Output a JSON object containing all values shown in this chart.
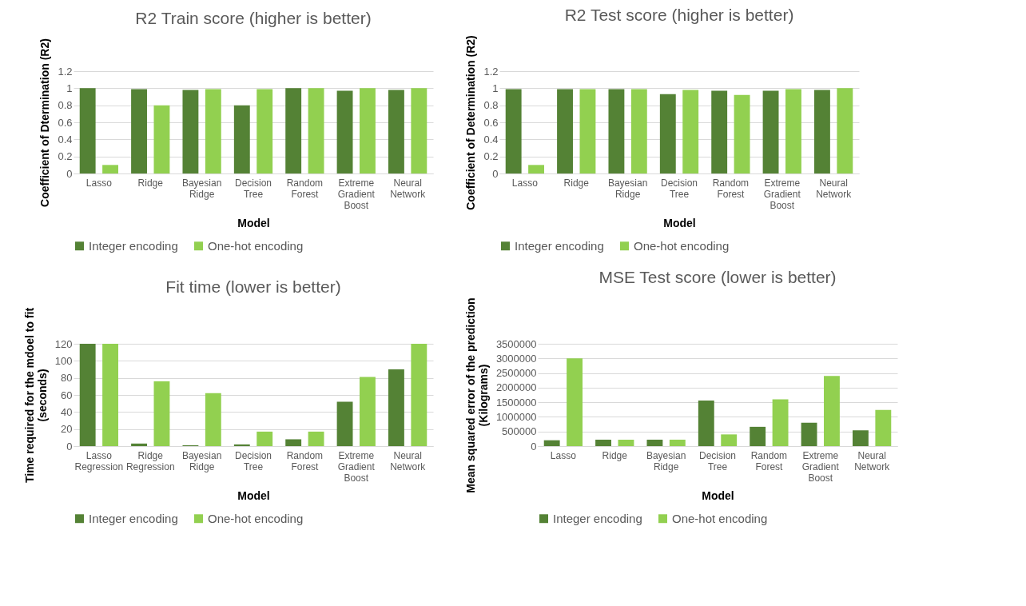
{
  "chart_data": [
    {
      "type": "bar",
      "title": "R2 Train score (higher is better)",
      "xlabel": "Model",
      "ylabel": "Coefficient of Dtermination (R2)",
      "categories": [
        "Lasso",
        "Ridge",
        "Bayesian Ridge",
        "Decision Tree",
        "Random Forest",
        "Extreme Gradient Boost",
        "Neural Network"
      ],
      "series": [
        {
          "name": "Integer encoding",
          "color": "#548235",
          "values": [
            1,
            0.99,
            0.98,
            0.8,
            1,
            0.97,
            0.98
          ]
        },
        {
          "name": "One-hot encoding",
          "color": "#92d050",
          "values": [
            0.1,
            0.8,
            0.99,
            0.99,
            1,
            1,
            1
          ]
        }
      ],
      "ylim": [
        0,
        1.2
      ],
      "yticks": [
        0,
        0.2,
        0.4,
        0.6,
        0.8,
        1,
        1.2
      ],
      "grid": "y",
      "legend": "bottom"
    },
    {
      "type": "bar",
      "title": "R2 Test score (higher is better)",
      "xlabel": "Model",
      "ylabel": "Coefficient of Determination (R2)",
      "categories": [
        "Lasso",
        "Ridge",
        "Bayesian Ridge",
        "Decision Tree",
        "Random Forest",
        "Extreme Gradient Boost",
        "Neural Network"
      ],
      "series": [
        {
          "name": "Integer encoding",
          "color": "#548235",
          "values": [
            0.99,
            0.99,
            0.99,
            0.93,
            0.97,
            0.97,
            0.98
          ]
        },
        {
          "name": "One-hot encoding",
          "color": "#92d050",
          "values": [
            0.1,
            0.99,
            0.99,
            0.98,
            0.92,
            0.99,
            1
          ]
        }
      ],
      "ylim": [
        0,
        1.2
      ],
      "yticks": [
        0,
        0.2,
        0.4,
        0.6,
        0.8,
        1,
        1.2
      ],
      "grid": "y",
      "legend": "bottom"
    },
    {
      "type": "bar",
      "title": "Fit time (lower is better)",
      "xlabel": "Model",
      "ylabel": "Time required for the mdoel to fit (seconds)",
      "categories": [
        "Lasso Regression",
        "Ridge Regression",
        "Bayesian Ridge",
        "Decision Tree",
        "Random Forest",
        "Extreme Gradient Boost",
        "Neural Network"
      ],
      "series": [
        {
          "name": "Integer encoding",
          "color": "#548235",
          "values": [
            120,
            3,
            1,
            2,
            8,
            52,
            90
          ]
        },
        {
          "name": "One-hot encoding",
          "color": "#92d050",
          "values": [
            120,
            76,
            62,
            17,
            17,
            81,
            120
          ]
        }
      ],
      "ylim": [
        0,
        120
      ],
      "yticks": [
        0,
        20,
        40,
        60,
        80,
        100,
        120
      ],
      "grid": "y",
      "legend": "bottom"
    },
    {
      "type": "bar",
      "title": "MSE Test score (lower is better)",
      "xlabel": "Model",
      "ylabel": "Mean squared error of the prediction (Kilograms)",
      "categories": [
        "Lasso",
        "Ridge",
        "Bayesian Ridge",
        "Decision Tree",
        "Random Forest",
        "Extreme Gradient Boost",
        "Neural Network"
      ],
      "series": [
        {
          "name": "Integer encoding",
          "color": "#548235",
          "values": [
            200000,
            220000,
            220000,
            1560000,
            660000,
            800000,
            540000
          ]
        },
        {
          "name": "One-hot encoding",
          "color": "#92d050",
          "values": [
            3000000,
            220000,
            220000,
            400000,
            1600000,
            2400000,
            1240000
          ]
        }
      ],
      "ylim": [
        0,
        3500000
      ],
      "yticks": [
        0,
        500000,
        1000000,
        1500000,
        2000000,
        2500000,
        3000000,
        3500000
      ],
      "grid": "y",
      "legend": "bottom"
    }
  ]
}
